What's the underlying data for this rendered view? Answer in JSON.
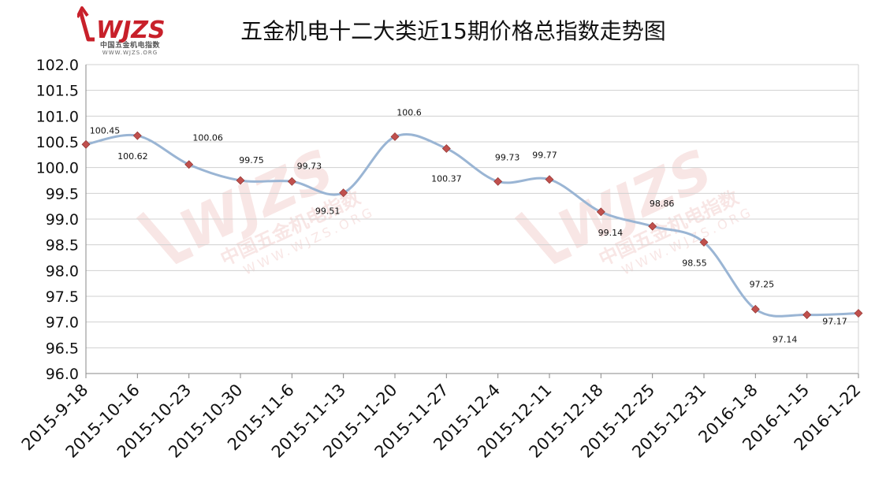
{
  "header": {
    "title": "五金机电十二大类近15期价格总指数走势图",
    "logo_text": "WJZS",
    "logo_cn": "中国五金机电指数",
    "logo_url": "WWW.WJZS.ORG"
  },
  "watermark": {
    "text": "WJZS",
    "cn": "中国五金机电指数",
    "url": "WWW.WJZS.ORG"
  },
  "colors": {
    "line": "#9ab5d4",
    "marker": "#c0504d",
    "logo_red": "#c8202a",
    "watermark": "#f3d3d0",
    "grid": "#d0d0d0",
    "axis": "#888888"
  },
  "chart_data": {
    "type": "line",
    "title": "五金机电十二大类近15期价格总指数走势图",
    "xlabel": "",
    "ylabel": "",
    "categories": [
      "2015-9-18",
      "2015-10-16",
      "2015-10-23",
      "2015-10-30",
      "2015-11-6",
      "2015-11-13",
      "2015-11-20",
      "2015-11-27",
      "2015-12-4",
      "2015-12-11",
      "2015-12-18",
      "2015-12-25",
      "2015-12-31",
      "2016-1-8",
      "2016-1-15",
      "2016-1-22"
    ],
    "values": [
      100.45,
      100.62,
      100.06,
      99.75,
      99.73,
      99.51,
      100.6,
      100.37,
      99.73,
      99.77,
      99.14,
      98.86,
      98.55,
      97.25,
      97.14,
      97.17
    ],
    "data_labels": [
      "100.45",
      "100.62",
      "100.06",
      "99.75",
      "99.73",
      "99.51",
      "100.6",
      "100.37",
      "99.73",
      "99.77",
      "99.14",
      "98.86",
      "98.55",
      "97.25",
      "97.14",
      "97.17"
    ],
    "ylim": [
      96.0,
      102.0
    ],
    "yticks": [
      "96.0",
      "96.5",
      "97.0",
      "97.5",
      "98.0",
      "98.5",
      "99.0",
      "99.5",
      "100.0",
      "100.5",
      "101.0",
      "101.5",
      "102.0"
    ],
    "grid": true,
    "smooth": true,
    "legend": "none"
  }
}
